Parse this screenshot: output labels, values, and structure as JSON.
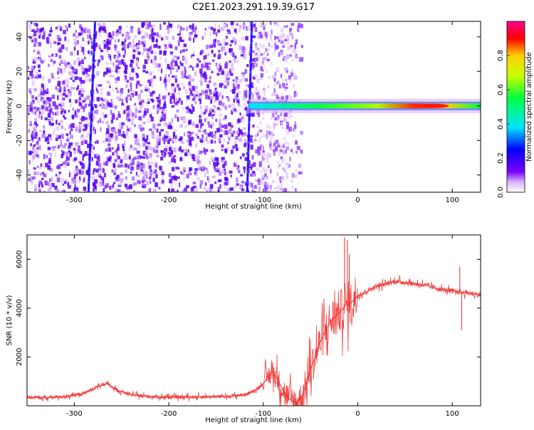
{
  "figure": {
    "title": "C2E1.2023.291.19.39.G17"
  },
  "chart_data": [
    {
      "type": "heatmap",
      "xlabel": "Height of straight line (km)",
      "ylabel": "Frequency (Hz)",
      "xlim": [
        -350,
        130
      ],
      "ylim": [
        -50,
        49
      ],
      "xticks": [
        -300,
        -200,
        -100,
        0,
        100
      ],
      "yticks": [
        -40,
        -20,
        0,
        20,
        40
      ],
      "colorbar": {
        "label": "Normalized spectral amplitude",
        "range": [
          0,
          1
        ],
        "ticks": [
          "0.0",
          "0.2",
          "0.4",
          "0.6",
          "0.8"
        ],
        "colors": [
          "#ffffff",
          "#d9b3ff",
          "#7a00ff",
          "#0000ff",
          "#00e5ff",
          "#00ff40",
          "#c8ff00",
          "#ffd000",
          "#ff0000",
          "#ff0090"
        ]
      },
      "features": [
        {
          "kind": "streak",
          "x_top": -278,
          "x_bottom": -285,
          "note": "thin tilted line"
        },
        {
          "kind": "streak",
          "x_top": -112,
          "x_bottom": -117
        },
        {
          "kind": "band",
          "x_start": -115,
          "x_end": 130,
          "freq_center": 0,
          "peak_x": 80
        }
      ]
    },
    {
      "type": "line",
      "xlabel": "Height of straight line (km)",
      "ylabel": "SNR (10 * v/v)",
      "xlim": [
        -350,
        130
      ],
      "ylim": [
        0,
        7000
      ],
      "xticks": [
        -300,
        -200,
        -100,
        0,
        100
      ],
      "yticks": [
        2000,
        4000,
        6000
      ],
      "series": [
        {
          "color": "#ef2a2a",
          "x": [
            -350,
            -330,
            -310,
            -290,
            -275,
            -265,
            -255,
            -240,
            -220,
            -200,
            -180,
            -160,
            -140,
            -120,
            -110,
            -100,
            -95,
            -90,
            -85,
            -80,
            -75,
            -70,
            -65,
            -60,
            -55,
            -50,
            -45,
            -40,
            -35,
            -30,
            -25,
            -20,
            -15,
            -12,
            -10,
            -5,
            0,
            10,
            20,
            30,
            40,
            50,
            60,
            70,
            80,
            90,
            100,
            110,
            120,
            130
          ],
          "y": [
            350,
            330,
            380,
            500,
            800,
            900,
            650,
            450,
            380,
            350,
            360,
            370,
            380,
            450,
            600,
            900,
            1200,
            1400,
            1100,
            700,
            400,
            200,
            150,
            300,
            800,
            1500,
            2000,
            2600,
            3000,
            3400,
            3600,
            3800,
            4000,
            4200,
            4100,
            4300,
            4500,
            4700,
            4900,
            5000,
            5100,
            5050,
            5000,
            4950,
            4850,
            4750,
            4700,
            4650,
            4600,
            4550
          ]
        }
      ]
    }
  ]
}
